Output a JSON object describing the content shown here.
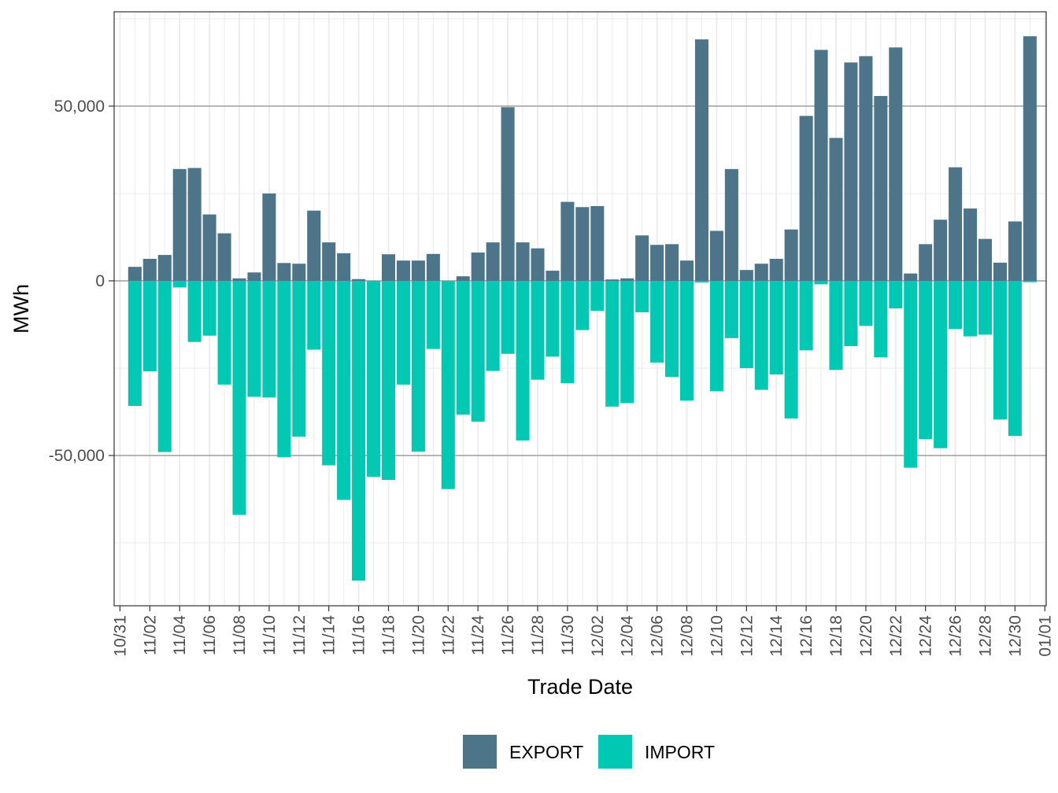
{
  "chart_data": {
    "type": "bar",
    "stacked": "diverging",
    "title": "",
    "xlabel": "Trade Date",
    "ylabel": "MWh",
    "ylim": [
      -93000,
      77000
    ],
    "yticks": [
      -50000,
      0,
      50000
    ],
    "ytick_labels": [
      "-50,000",
      "0",
      "50,000"
    ],
    "x_tick_labels": [
      "10/31",
      "11/02",
      "11/04",
      "11/06",
      "11/08",
      "11/10",
      "11/12",
      "11/14",
      "11/16",
      "11/18",
      "11/20",
      "11/22",
      "11/24",
      "11/26",
      "11/28",
      "11/30",
      "12/02",
      "12/04",
      "12/06",
      "12/08",
      "12/10",
      "12/12",
      "12/14",
      "12/16",
      "12/18",
      "12/20",
      "12/22",
      "12/24",
      "12/26",
      "12/28",
      "12/30",
      "01/01"
    ],
    "categories": [
      "11/01",
      "11/02",
      "11/03",
      "11/04",
      "11/05",
      "11/06",
      "11/07",
      "11/08",
      "11/09",
      "11/10",
      "11/11",
      "11/12",
      "11/13",
      "11/14",
      "11/15",
      "11/16",
      "11/17",
      "11/18",
      "11/19",
      "11/20",
      "11/21",
      "11/22",
      "11/23",
      "11/24",
      "11/25",
      "11/26",
      "11/27",
      "11/28",
      "11/29",
      "11/30",
      "12/01",
      "12/02",
      "12/03",
      "12/04",
      "12/05",
      "12/06",
      "12/07",
      "12/08",
      "12/09",
      "12/10",
      "12/11",
      "12/12",
      "12/13",
      "12/14",
      "12/15",
      "12/16",
      "12/17",
      "12/18",
      "12/19",
      "12/20",
      "12/21",
      "12/22",
      "12/23",
      "12/24",
      "12/25",
      "12/26",
      "12/27",
      "12/28",
      "12/29",
      "12/30",
      "12/31"
    ],
    "series": [
      {
        "name": "EXPORT",
        "color": "#4e7489",
        "values": [
          4000,
          6300,
          7400,
          32000,
          32300,
          19000,
          13600,
          700,
          2400,
          25000,
          5100,
          4900,
          20100,
          11000,
          7900,
          500,
          0,
          7600,
          5800,
          5800,
          7700,
          0,
          1300,
          8100,
          11000,
          49700,
          11000,
          9300,
          2900,
          22600,
          21100,
          21400,
          400,
          700,
          13000,
          10300,
          10500,
          5800,
          69100,
          14300,
          32000,
          3100,
          4900,
          6300,
          14700,
          47200,
          66100,
          40900,
          62500,
          64300,
          52900,
          66800,
          2100,
          10500,
          17500,
          32500,
          20700,
          12000,
          5200,
          17000,
          70000
        ]
      },
      {
        "name": "IMPORT",
        "color": "#00c8b2",
        "values": [
          -35800,
          -25900,
          -49000,
          -1900,
          -17500,
          -15700,
          -29700,
          -67000,
          -33200,
          -33400,
          -50500,
          -44600,
          -19700,
          -52800,
          -62700,
          -85800,
          -56100,
          -57000,
          -29700,
          -48900,
          -19500,
          -59600,
          -38300,
          -40300,
          -25800,
          -20900,
          -45700,
          -28300,
          -21700,
          -29300,
          -14100,
          -8600,
          -36000,
          -35000,
          -9000,
          -23400,
          -27500,
          -34300,
          -500,
          -31600,
          -16400,
          -25000,
          -31200,
          -26800,
          -39400,
          -19900,
          -1000,
          -25500,
          -18700,
          -12900,
          -21900,
          -7900,
          -53500,
          -45300,
          -47900,
          -13800,
          -15900,
          -15400,
          -39700,
          -44400,
          -400
        ]
      }
    ],
    "legend": {
      "position": "bottom",
      "entries": [
        "EXPORT",
        "IMPORT"
      ]
    },
    "grid": true
  }
}
